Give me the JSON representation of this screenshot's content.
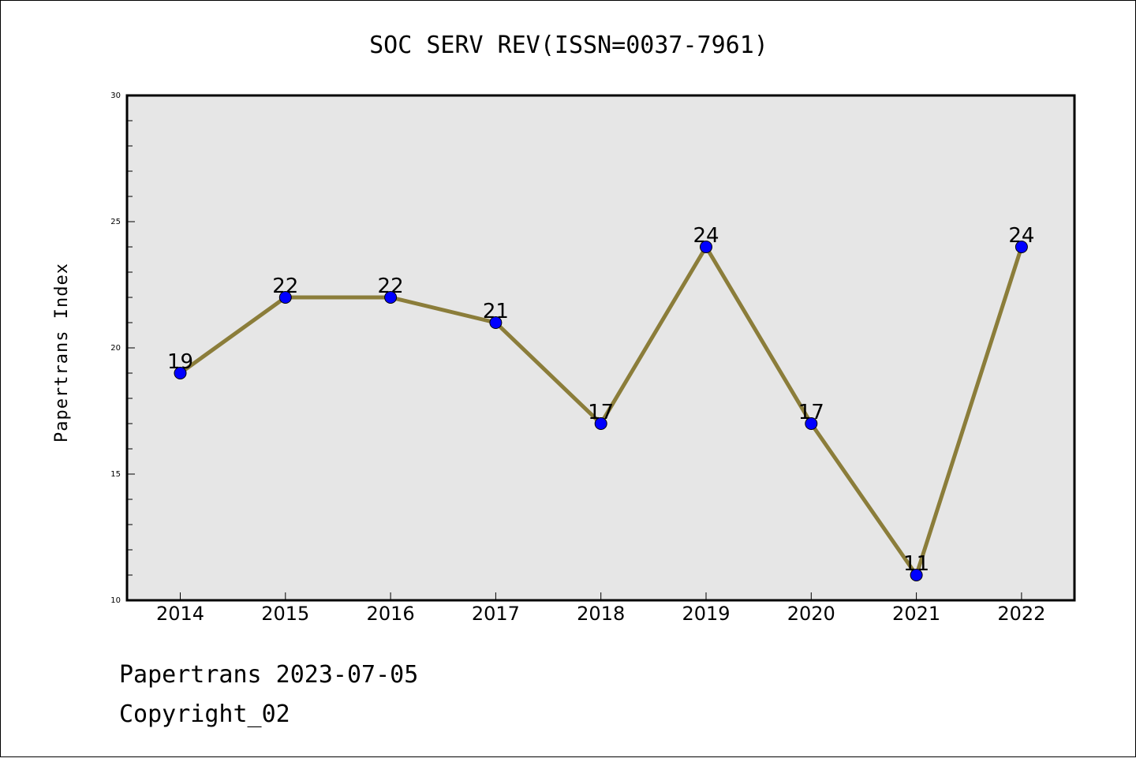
{
  "chart_data": {
    "type": "line",
    "title": "SOC SERV REV(ISSN=0037-7961)",
    "xlabel": "",
    "ylabel": "Papertrans Index",
    "categories": [
      "2014",
      "2015",
      "2016",
      "2017",
      "2018",
      "2019",
      "2020",
      "2021",
      "2022"
    ],
    "series": [
      {
        "values": [
          19,
          22,
          22,
          21,
          17,
          24,
          17,
          11,
          24
        ]
      }
    ],
    "ylim": [
      10,
      30
    ],
    "yticks": [
      "10",
      "15",
      "20",
      "25",
      "30"
    ],
    "grid": false,
    "data_labels": true,
    "colors": {
      "line": "#8B7D3A",
      "marker": "#0000FF",
      "plot_bg": "#E6E6E6"
    }
  },
  "footer": {
    "line1": "Papertrans 2023-07-05",
    "line2": "Copyright_02"
  }
}
